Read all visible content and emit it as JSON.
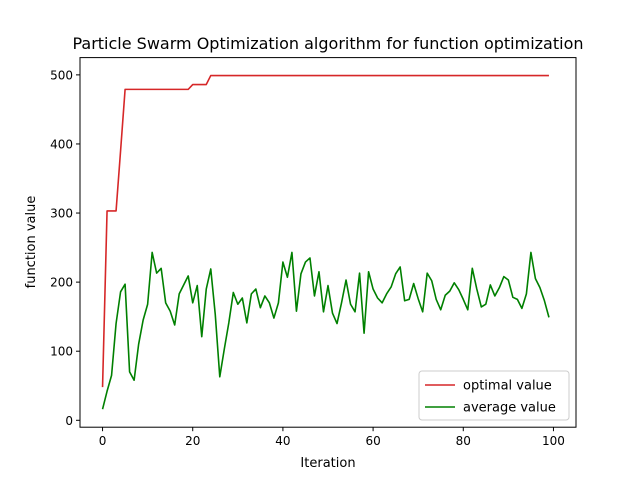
{
  "chart_data": {
    "type": "line",
    "title": "Particle Swarm Optimization algorithm for function optimization",
    "xlabel": "Iteration",
    "ylabel": "function value",
    "xlim": [
      -5,
      105
    ],
    "ylim": [
      -10,
      525
    ],
    "xticks": [
      0,
      20,
      40,
      60,
      80,
      100
    ],
    "yticks": [
      0,
      100,
      200,
      300,
      400,
      500
    ],
    "grid": false,
    "legend_position": "lower-right",
    "series": [
      {
        "name": "optimal value",
        "color": "#d62728",
        "values": [
          48,
          303,
          303,
          303,
          390,
          479,
          479,
          479,
          479,
          479,
          479,
          479,
          479,
          479,
          479,
          479,
          479,
          479,
          479,
          479,
          486,
          486,
          486,
          486,
          499,
          499,
          499,
          499,
          499,
          499,
          499,
          499,
          499,
          499,
          499,
          499,
          499,
          499,
          499,
          499,
          499,
          499,
          499,
          499,
          499,
          499,
          499,
          499,
          499,
          499,
          499,
          499,
          499,
          499,
          499,
          499,
          499,
          499,
          499,
          499,
          499,
          499,
          499,
          499,
          499,
          499,
          499,
          499,
          499,
          499,
          499,
          499,
          499,
          499,
          499,
          499,
          499,
          499,
          499,
          499,
          499,
          499,
          499,
          499,
          499,
          499,
          499,
          499,
          499,
          499,
          499,
          499,
          499,
          499,
          499,
          499,
          499,
          499,
          499,
          499
        ]
      },
      {
        "name": "average value",
        "color": "#008000",
        "values": [
          16,
          42,
          65,
          140,
          186,
          197,
          70,
          58,
          110,
          145,
          168,
          243,
          213,
          220,
          170,
          158,
          138,
          183,
          196,
          209,
          170,
          195,
          121,
          190,
          219,
          153,
          63,
          103,
          141,
          185,
          168,
          177,
          141,
          183,
          190,
          163,
          180,
          170,
          148,
          170,
          229,
          207,
          243,
          158,
          212,
          229,
          235,
          180,
          215,
          157,
          195,
          155,
          140,
          170,
          203,
          168,
          157,
          213,
          126,
          215,
          190,
          177,
          170,
          183,
          193,
          212,
          222,
          173,
          175,
          198,
          176,
          157,
          213,
          202,
          175,
          160,
          181,
          187,
          199,
          189,
          175,
          160,
          220,
          190,
          164,
          168,
          196,
          180,
          192,
          208,
          203,
          178,
          175,
          162,
          183,
          243,
          205,
          192,
          173,
          149
        ]
      }
    ]
  }
}
